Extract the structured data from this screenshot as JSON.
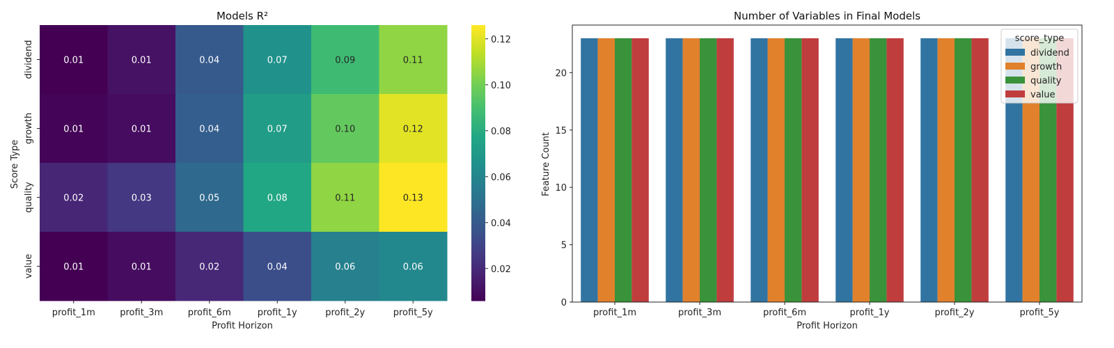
{
  "chart_data": [
    {
      "type": "heatmap",
      "title": "Models R²",
      "xlabel": "Profit Horizon",
      "ylabel": "Score Type",
      "x_categories": [
        "profit_1m",
        "profit_3m",
        "profit_6m",
        "profit_1y",
        "profit_2y",
        "profit_5y"
      ],
      "y_categories": [
        "dividend",
        "growth",
        "quality",
        "value"
      ],
      "values": [
        [
          0.006,
          0.012,
          0.04,
          0.067,
          0.088,
          0.106
        ],
        [
          0.007,
          0.01,
          0.042,
          0.073,
          0.097,
          0.121
        ],
        [
          0.019,
          0.026,
          0.047,
          0.078,
          0.106,
          0.126
        ],
        [
          0.006,
          0.01,
          0.02,
          0.035,
          0.058,
          0.062
        ]
      ],
      "labels": [
        [
          "0.01",
          "0.01",
          "0.04",
          "0.07",
          "0.09",
          "0.11"
        ],
        [
          "0.01",
          "0.01",
          "0.04",
          "0.07",
          "0.10",
          "0.12"
        ],
        [
          "0.02",
          "0.03",
          "0.05",
          "0.08",
          "0.11",
          "0.13"
        ],
        [
          "0.01",
          "0.01",
          "0.02",
          "0.04",
          "0.06",
          "0.06"
        ]
      ],
      "colormap": "viridis",
      "colorbar": {
        "range": [
          0.006,
          0.126
        ],
        "ticks": [
          0.02,
          0.04,
          0.06,
          0.08,
          0.1,
          0.12
        ],
        "tick_labels": [
          "0.02",
          "0.04",
          "0.06",
          "0.08",
          "0.10",
          "0.12"
        ]
      }
    },
    {
      "type": "bar",
      "title": "Number of Variables in Final Models",
      "xlabel": "Profit Horizon",
      "ylabel": "Feature Count",
      "categories": [
        "profit_1m",
        "profit_3m",
        "profit_6m",
        "profit_1y",
        "profit_2y",
        "profit_5y"
      ],
      "series": [
        {
          "name": "dividend",
          "color": "#3274a1",
          "values": [
            23,
            23,
            23,
            23,
            23,
            23
          ]
        },
        {
          "name": "growth",
          "color": "#e1812c",
          "values": [
            23,
            23,
            23,
            23,
            23,
            23
          ]
        },
        {
          "name": "quality",
          "color": "#3a923a",
          "values": [
            23,
            23,
            23,
            23,
            23,
            23
          ]
        },
        {
          "name": "value",
          "color": "#c03d3e",
          "values": [
            23,
            23,
            23,
            23,
            23,
            23
          ]
        }
      ],
      "ylim": [
        0,
        24.15
      ],
      "yticks": [
        0,
        5,
        10,
        15,
        20
      ],
      "legend": {
        "title": "score_type",
        "position": "top-right"
      }
    }
  ]
}
